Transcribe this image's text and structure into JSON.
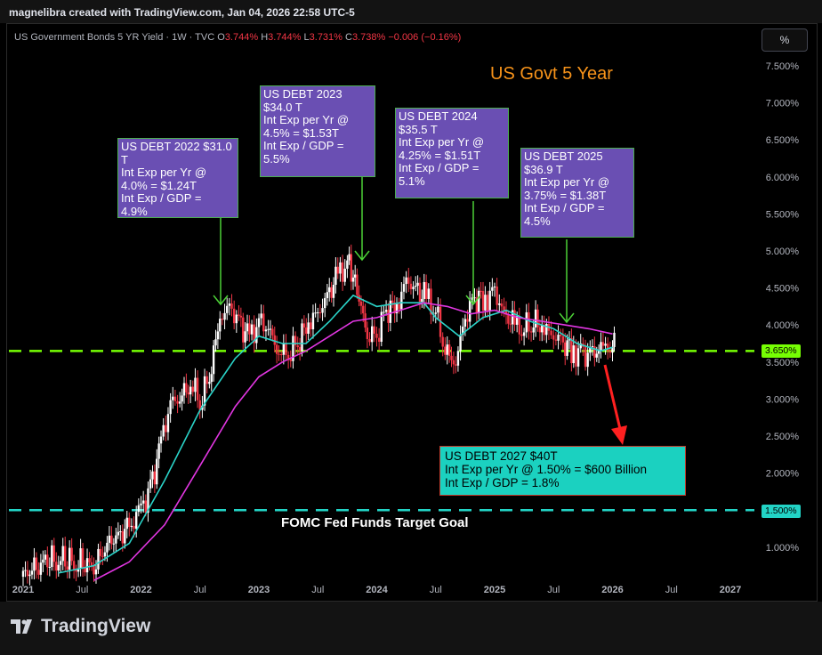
{
  "header": {
    "author_line": "magnelibra created with TradingView.com, Jan 04, 2026 22:58 UTC-5"
  },
  "legend": {
    "symbol": "US Government Bonds 5 YR Yield · 1W · TVC",
    "o_label": "O",
    "o_value": "3.744%",
    "h_label": "H",
    "h_value": "3.744%",
    "l_label": "L",
    "l_value": "3.731%",
    "c_label": "C",
    "c_value": "3.738%",
    "change": "−0.006 (−0.16%)"
  },
  "scale_button": "%",
  "branding": {
    "logo_text": "TradingView"
  },
  "colors": {
    "accent_orange": "#f7931a",
    "annotation_purple": "#6a4fb3",
    "annotation_teal": "#1bd1c0",
    "level_green": "#76ff03",
    "level_cyan": "#22d3c5",
    "ma_fast": "#2ad4c9",
    "ma_slow": "#e236e2",
    "up": "#ffffff",
    "down": "#f23645"
  },
  "chart_data": {
    "type": "candlestick",
    "title": "US Govt 5 Year",
    "ylabel": "%",
    "ylim": [
      0.5,
      7.7
    ],
    "y_ticks": [
      "7.500%",
      "7.000%",
      "6.500%",
      "6.000%",
      "5.500%",
      "5.000%",
      "4.500%",
      "4.000%",
      "3.500%",
      "3.000%",
      "2.500%",
      "2.000%",
      "1.500%",
      "1.000%"
    ],
    "y_tick_values": [
      7.5,
      7.0,
      6.5,
      6.0,
      5.5,
      5.0,
      4.5,
      4.0,
      3.5,
      3.0,
      2.5,
      2.0,
      1.5,
      1.0
    ],
    "x_ticks": [
      "2021",
      "Jul",
      "2022",
      "Jul",
      "2023",
      "Jul",
      "2024",
      "Jul",
      "2025",
      "Jul",
      "2026",
      "Jul",
      "2027"
    ],
    "x_tick_values": [
      2021.0,
      2021.5,
      2022.0,
      2022.5,
      2023.0,
      2023.5,
      2024.0,
      2024.5,
      2025.0,
      2025.5,
      2026.0,
      2026.5,
      2027.0
    ],
    "series": [
      {
        "name": "",
        "kind": "close",
        "x": [
          2021.0,
          2021.15,
          2021.3,
          2021.45,
          2021.6,
          2021.75,
          2021.9,
          2022.0,
          2022.08,
          2022.17,
          2022.25,
          2022.33,
          2022.42,
          2022.5,
          2022.58,
          2022.67,
          2022.75,
          2022.83,
          2022.92,
          2023.0,
          2023.08,
          2023.17,
          2023.25,
          2023.33,
          2023.42,
          2023.5,
          2023.58,
          2023.67,
          2023.75,
          2023.8,
          2023.85,
          2023.92,
          2024.0,
          2024.08,
          2024.17,
          2024.25,
          2024.33,
          2024.42,
          2024.5,
          2024.58,
          2024.67,
          2024.75,
          2024.83,
          2024.92,
          2025.0,
          2025.08,
          2025.17,
          2025.25,
          2025.33,
          2025.42,
          2025.5,
          2025.58,
          2025.67,
          2025.75,
          2025.83,
          2025.92,
          2026.0
        ],
        "y": [
          0.6,
          0.8,
          0.85,
          0.8,
          0.75,
          1.1,
          1.25,
          1.5,
          1.8,
          2.4,
          2.95,
          3.0,
          3.25,
          2.95,
          3.3,
          4.1,
          4.25,
          4.05,
          3.8,
          4.05,
          3.95,
          3.65,
          3.6,
          3.75,
          4.05,
          4.15,
          4.4,
          4.65,
          4.85,
          4.65,
          4.35,
          3.85,
          3.85,
          4.2,
          4.25,
          4.6,
          4.5,
          4.35,
          4.2,
          3.65,
          3.5,
          4.1,
          4.35,
          4.35,
          4.45,
          4.15,
          4.0,
          3.95,
          4.05,
          3.95,
          3.85,
          3.75,
          3.65,
          3.6,
          3.62,
          3.68,
          3.738
        ]
      },
      {
        "name": "",
        "kind": "ma_fast",
        "x": [
          2021.3,
          2021.6,
          2021.9,
          2022.2,
          2022.5,
          2022.8,
          2023.0,
          2023.2,
          2023.4,
          2023.6,
          2023.8,
          2024.0,
          2024.2,
          2024.4,
          2024.5,
          2024.7,
          2024.9,
          2025.1,
          2025.3,
          2025.5,
          2025.7,
          2025.9,
          2026.0
        ],
        "y": [
          0.65,
          0.75,
          1.05,
          1.9,
          2.85,
          3.55,
          3.85,
          3.75,
          3.75,
          4.05,
          4.4,
          4.25,
          4.3,
          4.3,
          4.1,
          3.85,
          4.1,
          4.2,
          4.05,
          3.95,
          3.75,
          3.65,
          3.7
        ]
      },
      {
        "name": "",
        "kind": "ma_slow",
        "x": [
          2021.6,
          2021.9,
          2022.2,
          2022.5,
          2022.8,
          2023.0,
          2023.2,
          2023.4,
          2023.6,
          2023.8,
          2024.0,
          2024.2,
          2024.4,
          2024.6,
          2024.8,
          2025.0,
          2025.2,
          2025.4,
          2025.6,
          2025.8,
          2026.0
        ],
        "y": [
          0.55,
          0.8,
          1.3,
          2.1,
          2.9,
          3.3,
          3.5,
          3.65,
          3.85,
          4.05,
          4.1,
          4.2,
          4.3,
          4.25,
          4.15,
          4.2,
          4.1,
          4.05,
          4.0,
          3.95,
          3.88
        ]
      }
    ],
    "current_price_label": "3.650%",
    "levels": [
      {
        "value": 3.65,
        "label": "3.650%",
        "color": "#76ff03"
      },
      {
        "value": 1.5,
        "label": "1.500%",
        "color": "#22d3c5"
      }
    ],
    "level_caption": "FOMC Fed Funds Target Goal",
    "annotations": [
      {
        "id": "debt-2022",
        "text": "US DEBT 2022 $31.0\nT\nInt Exp per Yr @\n4.0% = $1.24T\nInt Exp / GDP =\n4.9%"
      },
      {
        "id": "debt-2023",
        "text": "US DEBT 2023\n$34.0 T\nInt Exp per Yr @\n4.5% = $1.53T\nInt Exp / GDP =\n5.5%"
      },
      {
        "id": "debt-2024",
        "text": "US DEBT 2024\n$35.5 T\nInt Exp per Yr @\n4.25% = $1.51T\nInt Exp / GDP =\n5.1%"
      },
      {
        "id": "debt-2025",
        "text": "US DEBT 2025\n$36.9 T\nInt Exp per Yr @\n3.75% = $1.38T\nInt Exp / GDP =\n4.5%"
      },
      {
        "id": "debt-2027",
        "text": "US DEBT 2027 $40T\nInt Exp per Yr @ 1.50% = $600 Billion\nInt Exp / GDP = 1.8%"
      }
    ]
  }
}
